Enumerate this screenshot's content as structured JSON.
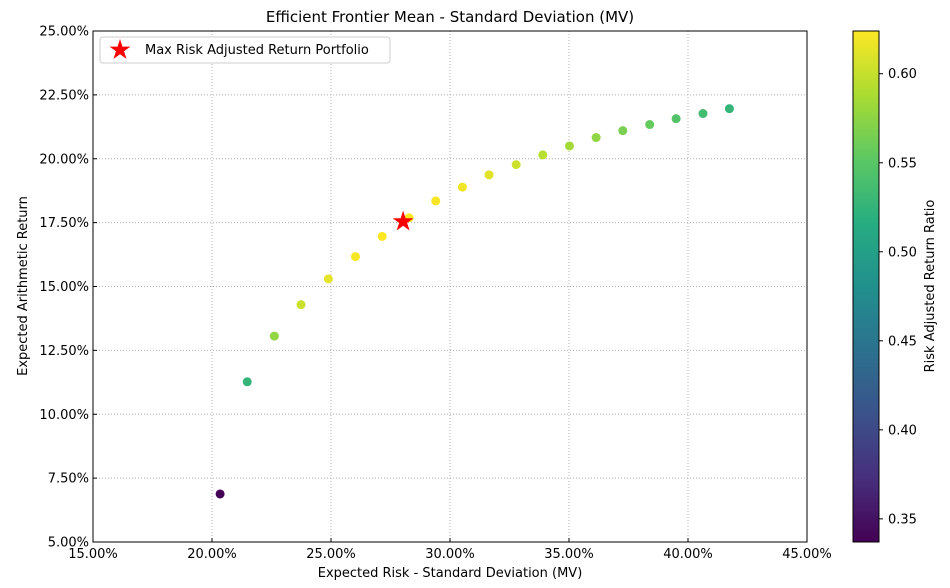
{
  "chart_data": {
    "type": "scatter",
    "title": "Efficient Frontier Mean - Standard Deviation (MV)",
    "xlabel": "Expected Risk - Standard Deviation (MV)",
    "ylabel": "Expected Arithmetic Return",
    "xlim": [
      0.15,
      0.45
    ],
    "ylim": [
      0.05,
      0.25
    ],
    "x_ticks": [
      "15.00%",
      "20.00%",
      "25.00%",
      "30.00%",
      "35.00%",
      "40.00%",
      "45.00%"
    ],
    "y_ticks": [
      "5.00%",
      "7.50%",
      "10.00%",
      "12.50%",
      "15.00%",
      "17.50%",
      "20.00%",
      "22.50%",
      "25.00%"
    ],
    "grid": true,
    "colormap": "viridis",
    "colorbar": {
      "label": "Risk Adjusted Return Ratio",
      "range": [
        0.337,
        0.624
      ],
      "ticks": [
        "0.35",
        "0.40",
        "0.45",
        "0.50",
        "0.55",
        "0.60"
      ]
    },
    "series": [
      {
        "points": [
          {
            "x": 0.2034,
            "y": 0.0688,
            "ratio": 0.338
          },
          {
            "x": 0.2148,
            "y": 0.1127,
            "ratio": 0.525
          },
          {
            "x": 0.2262,
            "y": 0.1306,
            "ratio": 0.577
          },
          {
            "x": 0.2374,
            "y": 0.1429,
            "ratio": 0.602
          },
          {
            "x": 0.2489,
            "y": 0.153,
            "ratio": 0.614
          },
          {
            "x": 0.2603,
            "y": 0.1617,
            "ratio": 0.621
          },
          {
            "x": 0.2715,
            "y": 0.1696,
            "ratio": 0.624
          },
          {
            "x": 0.2828,
            "y": 0.1769,
            "ratio": 0.624
          },
          {
            "x": 0.294,
            "y": 0.1835,
            "ratio": 0.622
          },
          {
            "x": 0.3052,
            "y": 0.1889,
            "ratio": 0.619
          },
          {
            "x": 0.3164,
            "y": 0.1937,
            "ratio": 0.612
          },
          {
            "x": 0.3278,
            "y": 0.1977,
            "ratio": 0.603
          },
          {
            "x": 0.339,
            "y": 0.2015,
            "ratio": 0.594
          },
          {
            "x": 0.3502,
            "y": 0.205,
            "ratio": 0.585
          },
          {
            "x": 0.3614,
            "y": 0.2083,
            "ratio": 0.576
          },
          {
            "x": 0.3726,
            "y": 0.211,
            "ratio": 0.566
          },
          {
            "x": 0.3839,
            "y": 0.2134,
            "ratio": 0.556
          },
          {
            "x": 0.395,
            "y": 0.2157,
            "ratio": 0.546
          },
          {
            "x": 0.4063,
            "y": 0.2177,
            "ratio": 0.536
          },
          {
            "x": 0.4174,
            "y": 0.2196,
            "ratio": 0.526
          }
        ]
      }
    ],
    "highlight": {
      "name": "Max Risk Adjusted Return Portfolio",
      "x": 0.2803,
      "y": 0.1754,
      "marker": "star",
      "color": "#ff0000"
    },
    "legend": {
      "placement": "top-left",
      "entries": [
        "Max Risk Adjusted Return Portfolio"
      ]
    }
  }
}
